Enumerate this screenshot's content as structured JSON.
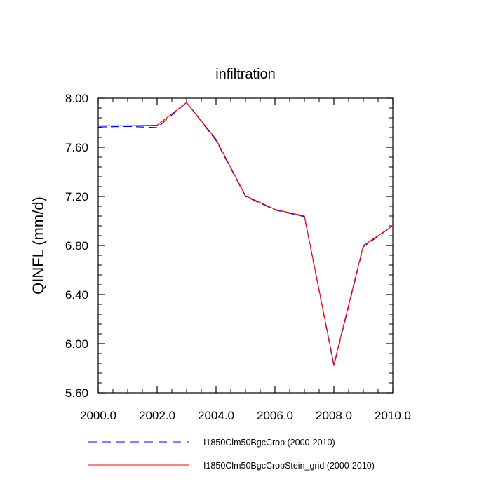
{
  "chart_data": {
    "type": "line",
    "title": "infiltration",
    "xlabel": "",
    "ylabel": "QINFL  (mm/d)",
    "xlim": [
      2000,
      2010
    ],
    "ylim": [
      5.6,
      8.0
    ],
    "x_ticks": [
      "2000.0",
      "2002.0",
      "2004.0",
      "2006.0",
      "2008.0",
      "2010.0"
    ],
    "y_ticks": [
      "5.60",
      "6.00",
      "6.40",
      "6.80",
      "7.20",
      "7.60",
      "8.00"
    ],
    "grid": false,
    "legend_position": "bottom",
    "x": [
      2000,
      2001,
      2002,
      2003,
      2004,
      2005,
      2006,
      2007,
      2008,
      2009,
      2010
    ],
    "series": [
      {
        "name": "I1850Clm50BgcCrop (2000-2010)",
        "color": "#0000ff",
        "style": "dashed",
        "values": [
          7.765,
          7.77,
          7.76,
          7.965,
          7.655,
          7.2,
          7.09,
          7.035,
          5.82,
          6.79,
          6.96
        ]
      },
      {
        "name": "I1850Clm50BgcCropStein_grid (2000-2010)",
        "color": "#ff0000",
        "style": "solid",
        "values": [
          7.775,
          7.775,
          7.78,
          7.965,
          7.665,
          7.205,
          7.095,
          7.04,
          5.83,
          6.8,
          6.96
        ]
      }
    ]
  }
}
